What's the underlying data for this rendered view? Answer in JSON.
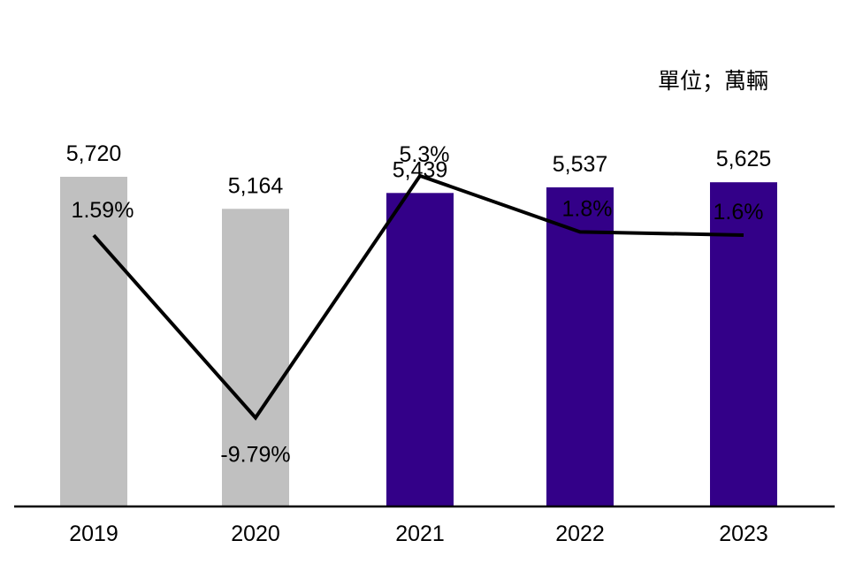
{
  "chart_data": {
    "type": "bar",
    "unit_label": "單位；萬輛",
    "categories": [
      "2019",
      "2020",
      "2021",
      "2022",
      "2023"
    ],
    "series": [
      {
        "values": [
          5720,
          5164,
          5439,
          5537,
          5625
        ],
        "value_labels": [
          "5,720",
          "5,164",
          "5,439",
          "5,537",
          "5,625"
        ]
      },
      {
        "type": "line",
        "values": [
          1.59,
          -9.79,
          5.3,
          1.8,
          1.6
        ],
        "value_labels": [
          "1.59%",
          "-9.79%",
          "5.3%",
          "1.8%",
          "1.6%"
        ]
      }
    ],
    "bar_colors": [
      "#c0c0c0",
      "#c0c0c0",
      "#330088",
      "#330088",
      "#330088"
    ],
    "line_color": "#000000"
  }
}
